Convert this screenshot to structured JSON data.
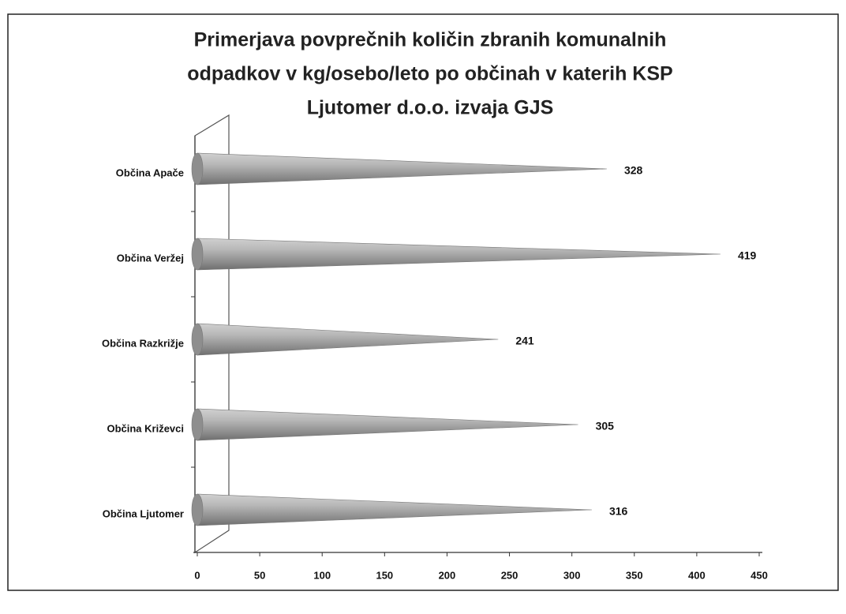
{
  "chart_data": {
    "type": "bar",
    "orientation": "horizontal",
    "title": [
      "Primerjava povprečnih količin zbranih komunalnih",
      "odpadkov  v kg/osebo/leto po občinah v katerih KSP",
      "Ljutomer d.o.o. izvaja  GJS"
    ],
    "categories": [
      "Občina Apače",
      "Občina Veržej",
      "Občina Razkrižje",
      "Občina Križevci",
      "Občina Ljutomer"
    ],
    "values": [
      328,
      419,
      241,
      305,
      316
    ],
    "color": "#9a9a9a",
    "xlim": [
      0,
      450
    ],
    "xticks": [
      0,
      50,
      100,
      150,
      200,
      250,
      300,
      350,
      400,
      450
    ]
  }
}
